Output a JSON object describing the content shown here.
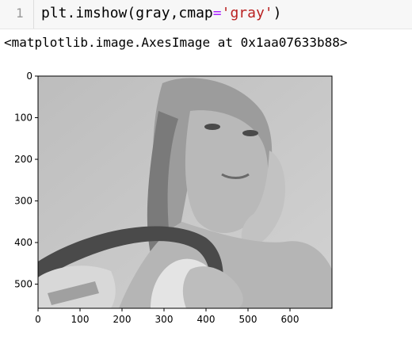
{
  "code_cell": {
    "line_number": "1",
    "code": {
      "func": "plt.imshow",
      "open_paren": "(",
      "arg1": "gray",
      "comma": ",",
      "kw": "cmap",
      "eq": "=",
      "string_value": "'gray'",
      "close_paren": ")"
    }
  },
  "output": {
    "text": "<matplotlib.image.AxesImage at 0x1aa07633b88>"
  },
  "figure": {
    "image_description_icon": "grayscale-portrait-image",
    "colors": {
      "background": "#c8c8c8",
      "sky": "#bdbdbd",
      "hair": "#8a8a8a",
      "skin": "#b0b0b0",
      "dark": "#3c3c3c",
      "white": "#e6e6e6"
    }
  },
  "chart_data": {
    "type": "image",
    "xlim": [
      0,
      700
    ],
    "ylim": [
      558,
      0
    ],
    "x_ticks": [
      0,
      100,
      200,
      300,
      400,
      500,
      600
    ],
    "y_ticks": [
      0,
      100,
      200,
      300,
      400,
      500
    ],
    "x_tick_labels": [
      "0",
      "100",
      "200",
      "300",
      "400",
      "500",
      "600"
    ],
    "y_tick_labels": [
      "0",
      "100",
      "200",
      "300",
      "400",
      "500"
    ],
    "title": "",
    "xlabel": "",
    "ylabel": ""
  }
}
